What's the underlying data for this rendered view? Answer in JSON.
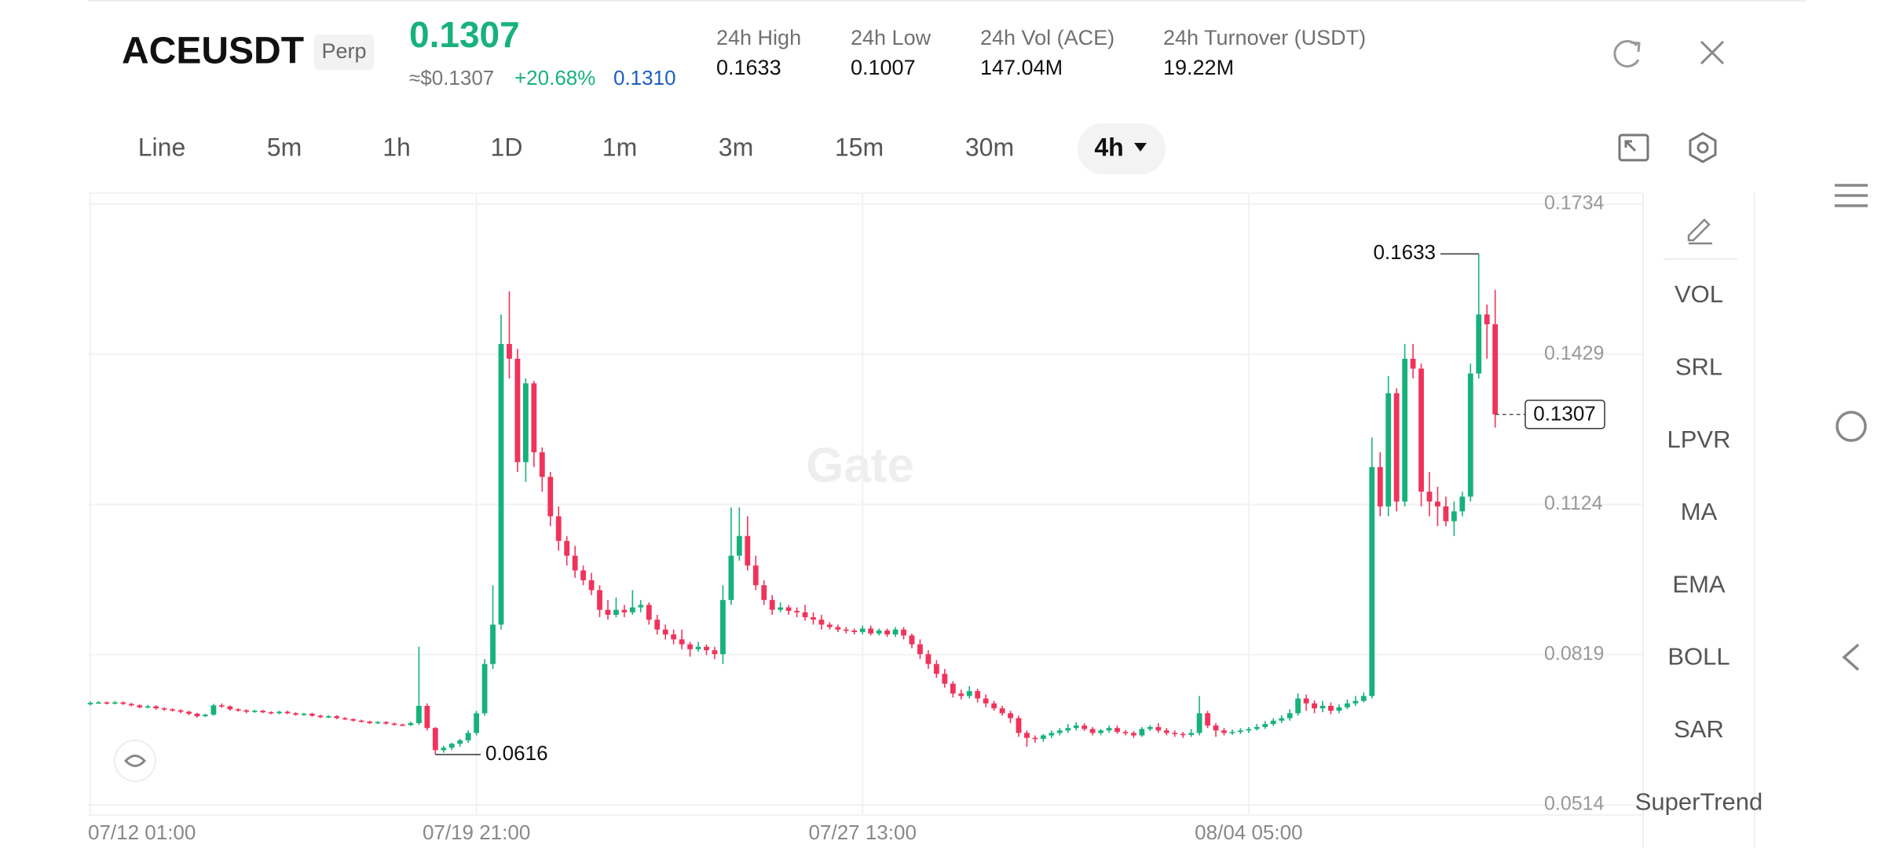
{
  "header": {
    "symbol": "ACEUSDT",
    "badge": "Perp",
    "last_price": "0.1307",
    "approx": "≈$0.1307",
    "change": "+20.68%",
    "mark_price": "0.1310",
    "stats": [
      {
        "label": "24h High",
        "value": "0.1633"
      },
      {
        "label": "24h Low",
        "value": "0.1007"
      },
      {
        "label": "24h Vol (ACE)",
        "value": "147.04M"
      },
      {
        "label": "24h Turnover (USDT)",
        "value": "19.22M"
      }
    ]
  },
  "tabs": [
    "Line",
    "5m",
    "1h",
    "1D",
    "1m",
    "3m",
    "15m",
    "30m",
    "4h"
  ],
  "sidebar": [
    "VOL",
    "SRL",
    "LPVR",
    "MA",
    "EMA",
    "BOLL",
    "SAR",
    "SuperTrend"
  ],
  "chart_data": {
    "type": "candlestick",
    "watermark": "Gate",
    "up_color": "#17b27b",
    "down_color": "#f0335c",
    "grid": true,
    "categories": [
      "07/12 01:00",
      null,
      null,
      null,
      null,
      null,
      null,
      null,
      null,
      null,
      null,
      null,
      null,
      null,
      null,
      null,
      null,
      null,
      null,
      null,
      null,
      null,
      null,
      null,
      null,
      null,
      null,
      null,
      null,
      null,
      null,
      null,
      null,
      null,
      null,
      null,
      null,
      null,
      null,
      null,
      null,
      null,
      null,
      null,
      null,
      null,
      null,
      "07/19 21:00",
      null,
      null,
      null,
      null,
      null,
      null,
      null,
      null,
      null,
      null,
      null,
      null,
      null,
      null,
      null,
      null,
      null,
      null,
      null,
      null,
      null,
      null,
      null,
      null,
      null,
      null,
      null,
      null,
      null,
      null,
      null,
      null,
      null,
      null,
      null,
      null,
      null,
      null,
      null,
      null,
      null,
      null,
      null,
      null,
      null,
      null,
      "07/27 13:00",
      null,
      null,
      null,
      null,
      null,
      null,
      null,
      null,
      null,
      null,
      null,
      null,
      null,
      null,
      null,
      null,
      null,
      null,
      null,
      null,
      null,
      null,
      null,
      null,
      null,
      null,
      null,
      null,
      null,
      null,
      null,
      null,
      null,
      null,
      null,
      null,
      null,
      null,
      null,
      null,
      null,
      null,
      null,
      null,
      null,
      null,
      "08/04 05:00",
      null,
      null,
      null,
      null,
      null,
      null,
      null,
      null,
      null,
      null,
      null,
      null,
      null,
      null,
      null,
      null,
      null,
      null,
      null,
      null,
      null,
      null,
      null,
      null,
      null,
      null,
      null,
      null,
      null,
      null
    ],
    "open": [
      0.0718,
      0.0721,
      0.0722,
      0.072,
      0.0722,
      0.0719,
      0.0716,
      0.0712,
      0.0714,
      0.071,
      0.0708,
      0.0706,
      0.0703,
      0.0699,
      0.0694,
      0.0697,
      0.0716,
      0.0714,
      0.0708,
      0.0706,
      0.0703,
      0.0705,
      0.0702,
      0.07,
      0.0703,
      0.07,
      0.0697,
      0.0699,
      0.0695,
      0.0692,
      0.0694,
      0.069,
      0.0688,
      0.0685,
      0.0683,
      0.068,
      0.0682,
      0.0679,
      0.0677,
      0.0676,
      0.068,
      0.0715,
      0.067,
      0.0625,
      0.063,
      0.0638,
      0.0645,
      0.066,
      0.07,
      0.08,
      0.088,
      0.145,
      0.142,
      0.121,
      0.137,
      0.123,
      0.118,
      0.11,
      0.105,
      0.102,
      0.099,
      0.097,
      0.095,
      0.091,
      0.09,
      0.091,
      0.0905,
      0.0915,
      0.092,
      0.089,
      0.087,
      0.086,
      0.085,
      0.084,
      0.083,
      0.0835,
      0.0828,
      0.082,
      0.093,
      0.102,
      0.106,
      0.1,
      0.096,
      0.093,
      0.091,
      0.0915,
      0.0908,
      0.0905,
      0.0895,
      0.089,
      0.088,
      0.0875,
      0.087,
      0.0868,
      0.0865,
      0.0872,
      0.0862,
      0.0868,
      0.086,
      0.087,
      0.0858,
      0.084,
      0.082,
      0.08,
      0.078,
      0.076,
      0.074,
      0.0735,
      0.0745,
      0.073,
      0.072,
      0.071,
      0.07,
      0.069,
      0.066,
      0.065,
      0.0648,
      0.0655,
      0.066,
      0.0665,
      0.067,
      0.0675,
      0.0668,
      0.066,
      0.0665,
      0.067,
      0.0662,
      0.066,
      0.0655,
      0.0668,
      0.0672,
      0.0665,
      0.066,
      0.0658,
      0.0656,
      0.066,
      0.07,
      0.0675,
      0.0665,
      0.066,
      0.0662,
      0.0665,
      0.0668,
      0.0672,
      0.0678,
      0.0685,
      0.069,
      0.07,
      0.073,
      0.072,
      0.071,
      0.0715,
      0.0705,
      0.0712,
      0.072,
      0.0725,
      0.0735,
      0.12,
      0.112,
      0.135,
      0.113,
      0.142,
      0.14,
      0.115,
      0.113,
      0.112,
      0.109,
      0.111,
      0.114,
      0.139,
      0.151,
      0.149
    ],
    "high": [
      0.0724,
      0.0725,
      0.0724,
      0.0725,
      0.0724,
      0.0721,
      0.0718,
      0.0717,
      0.0716,
      0.0712,
      0.071,
      0.0708,
      0.0705,
      0.0701,
      0.0699,
      0.0719,
      0.072,
      0.0716,
      0.071,
      0.0708,
      0.0707,
      0.0707,
      0.0704,
      0.0705,
      0.0705,
      0.0702,
      0.0701,
      0.0701,
      0.0697,
      0.0696,
      0.0696,
      0.0692,
      0.069,
      0.0687,
      0.0685,
      0.0684,
      0.0684,
      0.0681,
      0.0679,
      0.0683,
      0.0835,
      0.072,
      0.0672,
      0.0634,
      0.064,
      0.0648,
      0.0665,
      0.0705,
      0.081,
      0.096,
      0.151,
      0.1557,
      0.144,
      0.138,
      0.1375,
      0.124,
      0.119,
      0.112,
      0.106,
      0.104,
      0.1,
      0.0985,
      0.096,
      0.093,
      0.0935,
      0.092,
      0.095,
      0.093,
      0.0925,
      0.09,
      0.088,
      0.087,
      0.087,
      0.0845,
      0.0845,
      0.084,
      0.0835,
      0.096,
      0.1118,
      0.1118,
      0.11,
      0.102,
      0.097,
      0.094,
      0.0925,
      0.092,
      0.0915,
      0.092,
      0.0905,
      0.09,
      0.0885,
      0.088,
      0.0875,
      0.0872,
      0.0878,
      0.0878,
      0.0872,
      0.0872,
      0.0875,
      0.0875,
      0.0862,
      0.085,
      0.0828,
      0.0808,
      0.079,
      0.0765,
      0.0748,
      0.0755,
      0.075,
      0.0738,
      0.0725,
      0.0715,
      0.0705,
      0.0695,
      0.0665,
      0.0655,
      0.0658,
      0.0665,
      0.067,
      0.0678,
      0.0682,
      0.068,
      0.0672,
      0.0668,
      0.0675,
      0.0675,
      0.0666,
      0.0664,
      0.0672,
      0.0676,
      0.068,
      0.067,
      0.0665,
      0.0662,
      0.0668,
      0.0735,
      0.0705,
      0.068,
      0.067,
      0.0667,
      0.067,
      0.0672,
      0.0678,
      0.0684,
      0.069,
      0.0696,
      0.0708,
      0.074,
      0.0738,
      0.0726,
      0.0725,
      0.0722,
      0.0718,
      0.0728,
      0.0735,
      0.0742,
      0.126,
      0.123,
      0.1385,
      0.136,
      0.145,
      0.145,
      0.141,
      0.119,
      0.116,
      0.114,
      0.113,
      0.115,
      0.141,
      0.1633,
      0.153,
      0.156
    ],
    "low": [
      0.0716,
      0.0719,
      0.0718,
      0.0718,
      0.0717,
      0.0714,
      0.071,
      0.071,
      0.0707,
      0.0705,
      0.0703,
      0.07,
      0.0696,
      0.0691,
      0.0692,
      0.0695,
      0.0711,
      0.0705,
      0.0703,
      0.07,
      0.0701,
      0.07,
      0.0698,
      0.0698,
      0.0698,
      0.0695,
      0.0695,
      0.0693,
      0.069,
      0.069,
      0.0688,
      0.0686,
      0.0683,
      0.0681,
      0.0678,
      0.0678,
      0.0677,
      0.0675,
      0.0674,
      0.0674,
      0.0676,
      0.0665,
      0.0616,
      0.062,
      0.0625,
      0.0632,
      0.064,
      0.0655,
      0.0695,
      0.079,
      0.087,
      0.138,
      0.119,
      0.117,
      0.12,
      0.115,
      0.108,
      0.103,
      0.1,
      0.0975,
      0.096,
      0.094,
      0.0895,
      0.089,
      0.0895,
      0.0895,
      0.09,
      0.0905,
      0.088,
      0.086,
      0.085,
      0.084,
      0.083,
      0.0815,
      0.0825,
      0.0818,
      0.081,
      0.08,
      0.092,
      0.101,
      0.099,
      0.095,
      0.092,
      0.09,
      0.0905,
      0.09,
      0.0895,
      0.0888,
      0.088,
      0.087,
      0.087,
      0.0865,
      0.0862,
      0.086,
      0.086,
      0.0858,
      0.0858,
      0.0855,
      0.0855,
      0.085,
      0.0832,
      0.081,
      0.079,
      0.0772,
      0.0752,
      0.0732,
      0.0728,
      0.073,
      0.0722,
      0.0712,
      0.0705,
      0.0695,
      0.068,
      0.0652,
      0.0632,
      0.064,
      0.0642,
      0.065,
      0.0655,
      0.066,
      0.0665,
      0.0664,
      0.0655,
      0.0655,
      0.066,
      0.0658,
      0.0655,
      0.065,
      0.0652,
      0.0664,
      0.066,
      0.0655,
      0.0652,
      0.065,
      0.0652,
      0.0655,
      0.067,
      0.0652,
      0.0655,
      0.0656,
      0.0658,
      0.066,
      0.0665,
      0.0668,
      0.0674,
      0.068,
      0.0685,
      0.0695,
      0.0705,
      0.07,
      0.0702,
      0.0698,
      0.07,
      0.0708,
      0.0715,
      0.0722,
      0.073,
      0.11,
      0.11,
      0.111,
      0.112,
      0.138,
      0.112,
      0.11,
      0.108,
      0.108,
      0.106,
      0.11,
      0.113,
      0.138,
      0.142,
      0.128
    ],
    "close": [
      0.0721,
      0.0722,
      0.072,
      0.0722,
      0.0719,
      0.0716,
      0.0712,
      0.0714,
      0.071,
      0.0708,
      0.0706,
      0.0703,
      0.0699,
      0.0694,
      0.0697,
      0.0716,
      0.0714,
      0.0708,
      0.0706,
      0.0703,
      0.0705,
      0.0702,
      0.07,
      0.0703,
      0.07,
      0.0697,
      0.0699,
      0.0695,
      0.0692,
      0.0694,
      0.069,
      0.0688,
      0.0685,
      0.0683,
      0.068,
      0.0682,
      0.0679,
      0.0677,
      0.0676,
      0.068,
      0.0715,
      0.067,
      0.0625,
      0.063,
      0.0638,
      0.0645,
      0.066,
      0.07,
      0.08,
      0.088,
      0.145,
      0.142,
      0.121,
      0.137,
      0.123,
      0.118,
      0.11,
      0.105,
      0.102,
      0.099,
      0.097,
      0.095,
      0.091,
      0.09,
      0.091,
      0.0905,
      0.0915,
      0.092,
      0.089,
      0.087,
      0.086,
      0.085,
      0.084,
      0.083,
      0.0835,
      0.0828,
      0.082,
      0.093,
      0.102,
      0.106,
      0.1,
      0.096,
      0.093,
      0.091,
      0.0915,
      0.0908,
      0.0905,
      0.0895,
      0.089,
      0.088,
      0.0875,
      0.087,
      0.0868,
      0.0865,
      0.0872,
      0.0862,
      0.0868,
      0.086,
      0.087,
      0.0858,
      0.084,
      0.082,
      0.08,
      0.078,
      0.076,
      0.074,
      0.0735,
      0.0745,
      0.073,
      0.072,
      0.071,
      0.07,
      0.069,
      0.066,
      0.065,
      0.0648,
      0.0655,
      0.066,
      0.0665,
      0.067,
      0.0675,
      0.0668,
      0.066,
      0.0665,
      0.067,
      0.0662,
      0.066,
      0.0655,
      0.0668,
      0.0672,
      0.0665,
      0.066,
      0.0658,
      0.0656,
      0.066,
      0.07,
      0.0675,
      0.0665,
      0.066,
      0.0662,
      0.0665,
      0.0668,
      0.0672,
      0.0678,
      0.0685,
      0.069,
      0.07,
      0.073,
      0.072,
      0.071,
      0.0715,
      0.0705,
      0.0712,
      0.072,
      0.0725,
      0.0735,
      0.12,
      0.112,
      0.135,
      0.113,
      0.142,
      0.14,
      0.115,
      0.113,
      0.112,
      0.109,
      0.111,
      0.114,
      0.139,
      0.151,
      0.149,
      0.1307
    ],
    "ylim": [
      0.0514,
      0.1734
    ],
    "yticks": [
      0.1734,
      0.1429,
      0.1124,
      0.0819,
      0.0514
    ],
    "high_marker": 0.1633,
    "low_marker": 0.0616,
    "last_price": 0.1307
  }
}
